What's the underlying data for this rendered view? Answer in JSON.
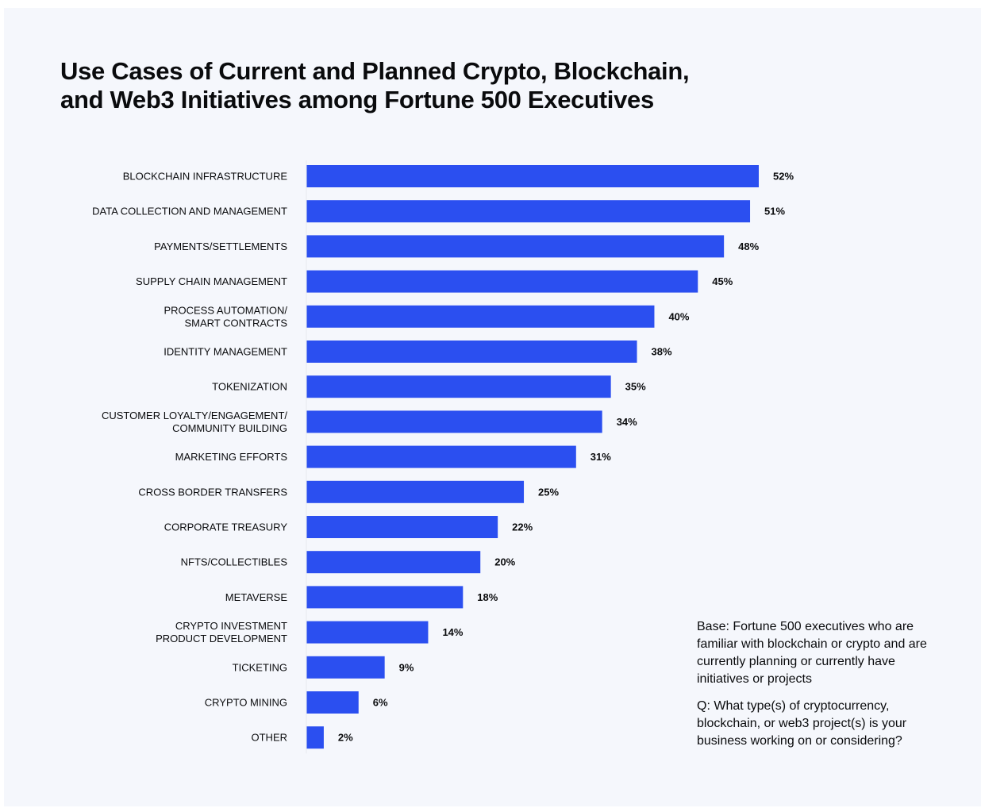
{
  "title": {
    "line1": "Use Cases of Current and Planned Crypto, Blockchain,",
    "line2": "and Web3 Initiatives among Fortune 500 Executives"
  },
  "notes": {
    "base": "Base: Fortune 500 executives who are familiar with blockchain or crypto and are currently planning or currently have initiatives or projects",
    "question": "Q: What type(s) of cryptocurrency, blockchain, or web3 project(s) is your business working on or considering?"
  },
  "chart_data": {
    "type": "bar",
    "orientation": "horizontal",
    "title": "Use Cases of Current and Planned Crypto, Blockchain, and Web3 Initiatives among Fortune 500 Executives",
    "xlabel": "",
    "ylabel": "",
    "unit": "%",
    "xlim": [
      0,
      52
    ],
    "grid": false,
    "bar_color": "#2b4ff0",
    "categories": [
      [
        "BLOCKCHAIN INFRASTRUCTURE"
      ],
      [
        "DATA COLLECTION AND MANAGEMENT"
      ],
      [
        "PAYMENTS/SETTLEMENTS"
      ],
      [
        "SUPPLY CHAIN MANAGEMENT"
      ],
      [
        "PROCESS AUTOMATION/",
        "SMART CONTRACTS"
      ],
      [
        "IDENTITY MANAGEMENT"
      ],
      [
        "TOKENIZATION"
      ],
      [
        "CUSTOMER LOYALTY/ENGAGEMENT/",
        "COMMUNITY BUILDING"
      ],
      [
        "MARKETING EFFORTS"
      ],
      [
        "CROSS BORDER TRANSFERS"
      ],
      [
        "CORPORATE TREASURY"
      ],
      [
        "NFTS/COLLECTIBLES"
      ],
      [
        "METAVERSE"
      ],
      [
        "CRYPTO INVESTMENT",
        "PRODUCT DEVELOPMENT"
      ],
      [
        "TICKETING"
      ],
      [
        "CRYPTO MINING"
      ],
      [
        "OTHER"
      ]
    ],
    "values": [
      52,
      51,
      48,
      45,
      40,
      38,
      35,
      34,
      31,
      25,
      22,
      20,
      18,
      14,
      9,
      6,
      2
    ],
    "value_labels": [
      "52%",
      "51%",
      "48%",
      "45%",
      "40%",
      "38%",
      "35%",
      "34%",
      "31%",
      "25%",
      "22%",
      "20%",
      "18%",
      "14%",
      "9%",
      "6%",
      "2%"
    ]
  }
}
